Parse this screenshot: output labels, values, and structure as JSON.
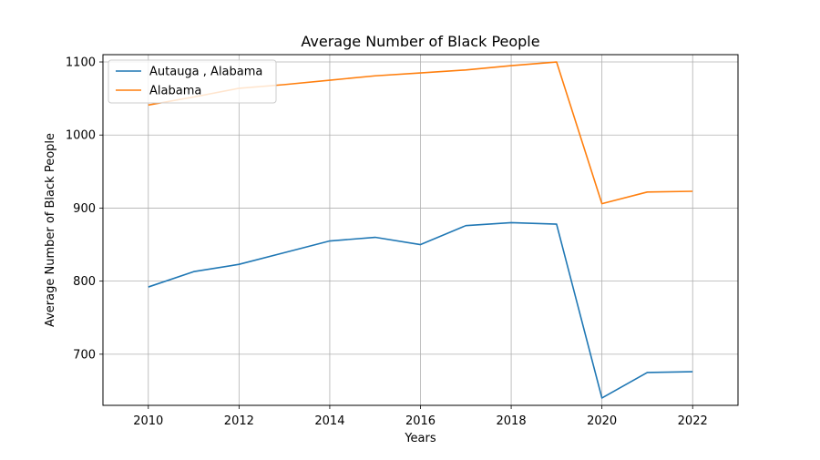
{
  "chart_data": {
    "type": "line",
    "title": "Average Number of Black People",
    "xlabel": "Years",
    "ylabel": "Average Number of Black People",
    "xlim": [
      2009,
      2023
    ],
    "ylim": [
      630,
      1110
    ],
    "xticks": [
      2010,
      2012,
      2014,
      2016,
      2018,
      2020,
      2022
    ],
    "yticks": [
      700,
      800,
      900,
      1000,
      1100
    ],
    "grid": true,
    "legend": "upper-left",
    "x": [
      2010,
      2011,
      2012,
      2013,
      2014,
      2015,
      2016,
      2017,
      2018,
      2019,
      2020,
      2021,
      2022
    ],
    "series": [
      {
        "name": "Autauga , Alabama",
        "color": "#1f77b4",
        "values": [
          792,
          813,
          823,
          839,
          855,
          860,
          850,
          876,
          880,
          878,
          640,
          675,
          676
        ]
      },
      {
        "name": "Alabama",
        "color": "#ff7f0e",
        "values": [
          1041,
          1052,
          1064,
          1069,
          1075,
          1081,
          1085,
          1089,
          1095,
          1100,
          906,
          922,
          923
        ]
      }
    ]
  }
}
